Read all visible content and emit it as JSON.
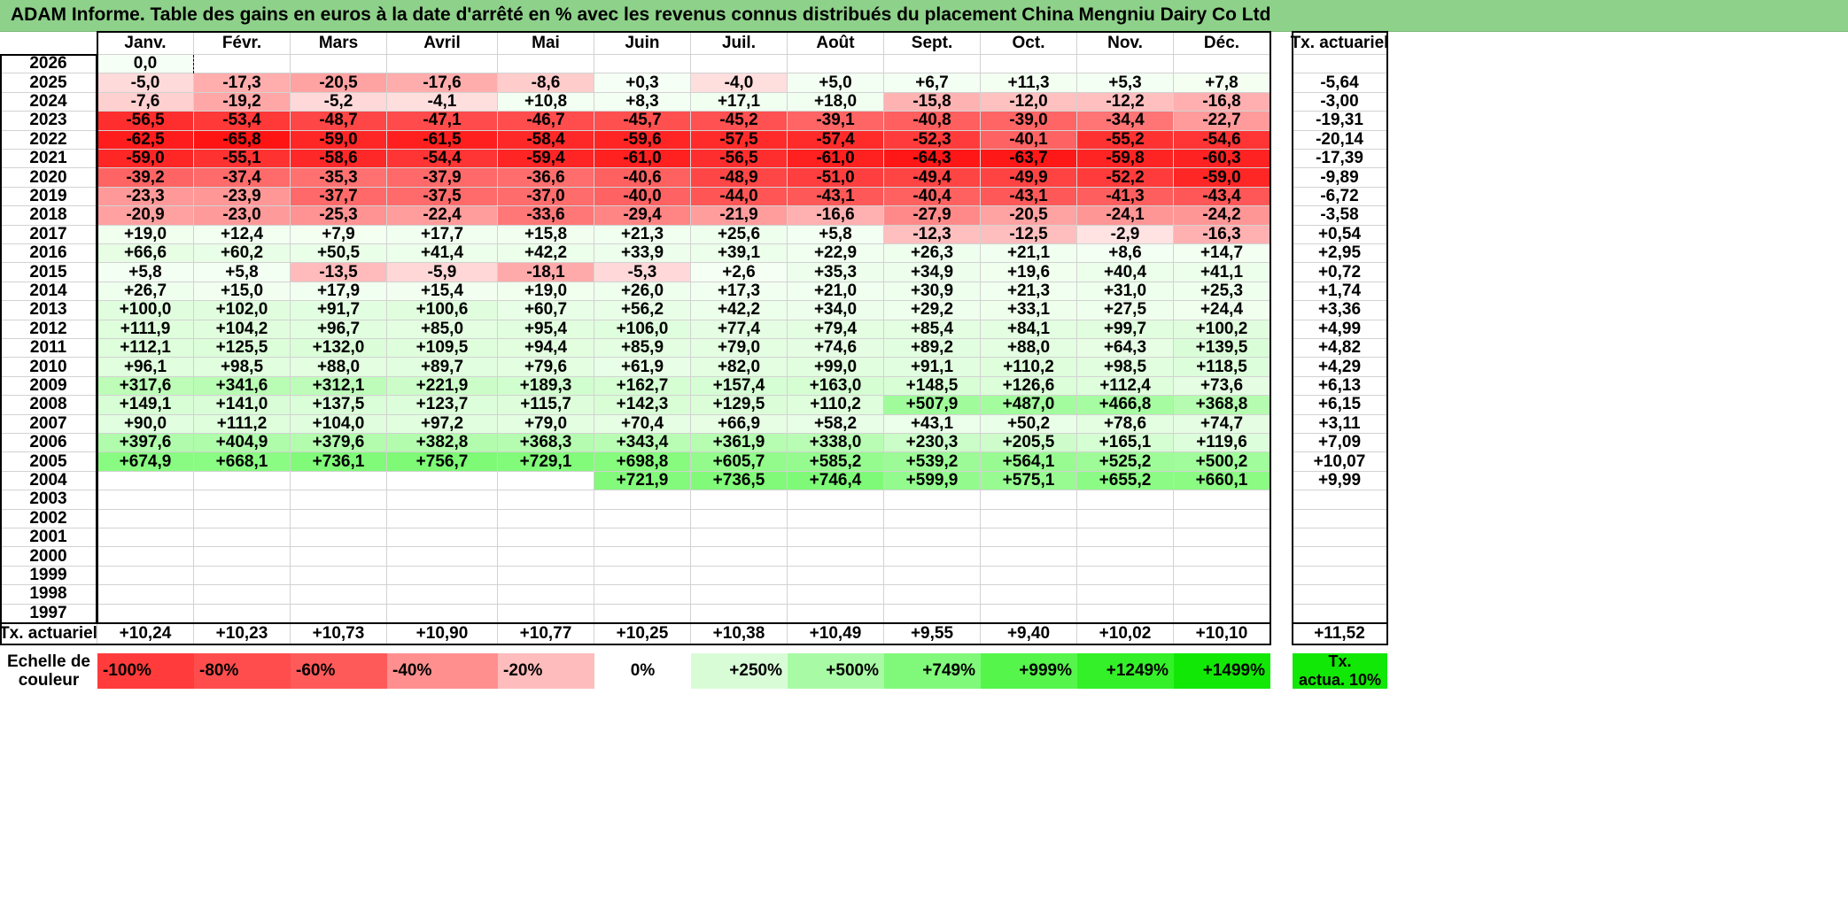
{
  "title": "ADAM Informe. Table des gains en euros à la date d'arrêté en % avec les revenus connus distribués du placement China Mengniu Dairy Co Ltd",
  "months": [
    "Janv.",
    "Févr.",
    "Mars",
    "Avril",
    "Mai",
    "Juin",
    "Juil.",
    "Août",
    "Sept.",
    "Oct.",
    "Nov.",
    "Déc."
  ],
  "annual_header": "Tx. actuariel",
  "years": [
    "2026",
    "2025",
    "2024",
    "2023",
    "2022",
    "2021",
    "2020",
    "2019",
    "2018",
    "2017",
    "2016",
    "2015",
    "2014",
    "2013",
    "2012",
    "2011",
    "2010",
    "2009",
    "2008",
    "2007",
    "2006",
    "2005",
    "2004",
    "2003",
    "2002",
    "2001",
    "2000",
    "1999",
    "1998",
    "1997"
  ],
  "values": [
    [
      "0,0",
      "",
      "",
      "",
      "",
      "",
      "",
      "",
      "",
      "",
      "",
      ""
    ],
    [
      "-5,0",
      "-17,3",
      "-20,5",
      "-17,6",
      "-8,6",
      "+0,3",
      "-4,0",
      "+5,0",
      "+6,7",
      "+11,3",
      "+5,3",
      "+7,8"
    ],
    [
      "-7,6",
      "-19,2",
      "-5,2",
      "-4,1",
      "+10,8",
      "+8,3",
      "+17,1",
      "+18,0",
      "-15,8",
      "-12,0",
      "-12,2",
      "-16,8"
    ],
    [
      "-56,5",
      "-53,4",
      "-48,7",
      "-47,1",
      "-46,7",
      "-45,7",
      "-45,2",
      "-39,1",
      "-40,8",
      "-39,0",
      "-34,4",
      "-22,7"
    ],
    [
      "-62,5",
      "-65,8",
      "-59,0",
      "-61,5",
      "-58,4",
      "-59,6",
      "-57,5",
      "-57,4",
      "-52,3",
      "-40,1",
      "-55,2",
      "-54,6"
    ],
    [
      "-59,0",
      "-55,1",
      "-58,6",
      "-54,4",
      "-59,4",
      "-61,0",
      "-56,5",
      "-61,0",
      "-64,3",
      "-63,7",
      "-59,8",
      "-60,3"
    ],
    [
      "-39,2",
      "-37,4",
      "-35,3",
      "-37,9",
      "-36,6",
      "-40,6",
      "-48,9",
      "-51,0",
      "-49,4",
      "-49,9",
      "-52,2",
      "-59,0"
    ],
    [
      "-23,3",
      "-23,9",
      "-37,7",
      "-37,5",
      "-37,0",
      "-40,0",
      "-44,0",
      "-43,1",
      "-40,4",
      "-43,1",
      "-41,3",
      "-43,4"
    ],
    [
      "-20,9",
      "-23,0",
      "-25,3",
      "-22,4",
      "-33,6",
      "-29,4",
      "-21,9",
      "-16,6",
      "-27,9",
      "-20,5",
      "-24,1",
      "-24,2"
    ],
    [
      "+19,0",
      "+12,4",
      "+7,9",
      "+17,7",
      "+15,8",
      "+21,3",
      "+25,6",
      "+5,8",
      "-12,3",
      "-12,5",
      "-2,9",
      "-16,3"
    ],
    [
      "+66,6",
      "+60,2",
      "+50,5",
      "+41,4",
      "+42,2",
      "+33,9",
      "+39,1",
      "+22,9",
      "+26,3",
      "+21,1",
      "+8,6",
      "+14,7"
    ],
    [
      "+5,8",
      "+5,8",
      "-13,5",
      "-5,9",
      "-18,1",
      "-5,3",
      "+2,6",
      "+35,3",
      "+34,9",
      "+19,6",
      "+40,4",
      "+41,1"
    ],
    [
      "+26,7",
      "+15,0",
      "+17,9",
      "+15,4",
      "+19,0",
      "+26,0",
      "+17,3",
      "+21,0",
      "+30,9",
      "+21,3",
      "+31,0",
      "+25,3"
    ],
    [
      "+100,0",
      "+102,0",
      "+91,7",
      "+100,6",
      "+60,7",
      "+56,2",
      "+42,2",
      "+34,0",
      "+29,2",
      "+33,1",
      "+27,5",
      "+24,4"
    ],
    [
      "+111,9",
      "+104,2",
      "+96,7",
      "+85,0",
      "+95,4",
      "+106,0",
      "+77,4",
      "+79,4",
      "+85,4",
      "+84,1",
      "+99,7",
      "+100,2"
    ],
    [
      "+112,1",
      "+125,5",
      "+132,0",
      "+109,5",
      "+94,4",
      "+85,9",
      "+79,0",
      "+74,6",
      "+89,2",
      "+88,0",
      "+64,3",
      "+139,5"
    ],
    [
      "+96,1",
      "+98,5",
      "+88,0",
      "+89,7",
      "+79,6",
      "+61,9",
      "+82,0",
      "+99,0",
      "+91,1",
      "+110,2",
      "+98,5",
      "+118,5"
    ],
    [
      "+317,6",
      "+341,6",
      "+312,1",
      "+221,9",
      "+189,3",
      "+162,7",
      "+157,4",
      "+163,0",
      "+148,5",
      "+126,6",
      "+112,4",
      "+73,6"
    ],
    [
      "+149,1",
      "+141,0",
      "+137,5",
      "+123,7",
      "+115,7",
      "+142,3",
      "+129,5",
      "+110,2",
      "+507,9",
      "+487,0",
      "+466,8",
      "+368,8"
    ],
    [
      "+90,0",
      "+111,2",
      "+104,0",
      "+97,2",
      "+79,0",
      "+70,4",
      "+66,9",
      "+58,2",
      "+43,1",
      "+50,2",
      "+78,6",
      "+74,7"
    ],
    [
      "+397,6",
      "+404,9",
      "+379,6",
      "+382,8",
      "+368,3",
      "+343,4",
      "+361,9",
      "+338,0",
      "+230,3",
      "+205,5",
      "+165,1",
      "+119,6"
    ],
    [
      "+674,9",
      "+668,1",
      "+736,1",
      "+756,7",
      "+729,1",
      "+698,8",
      "+605,7",
      "+585,2",
      "+539,2",
      "+564,1",
      "+525,2",
      "+500,2"
    ],
    [
      "",
      "",
      "",
      "",
      "",
      "+721,9",
      "+736,5",
      "+746,4",
      "+599,9",
      "+575,1",
      "+655,2",
      "+660,1"
    ],
    [
      "",
      "",
      "",
      "",
      "",
      "",
      "",
      "",
      "",
      "",
      "",
      ""
    ],
    [
      "",
      "",
      "",
      "",
      "",
      "",
      "",
      "",
      "",
      "",
      "",
      ""
    ],
    [
      "",
      "",
      "",
      "",
      "",
      "",
      "",
      "",
      "",
      "",
      "",
      ""
    ],
    [
      "",
      "",
      "",
      "",
      "",
      "",
      "",
      "",
      "",
      "",
      "",
      ""
    ],
    [
      "",
      "",
      "",
      "",
      "",
      "",
      "",
      "",
      "",
      "",
      "",
      ""
    ],
    [
      "",
      "",
      "",
      "",
      "",
      "",
      "",
      "",
      "",
      "",
      "",
      ""
    ],
    [
      "",
      "",
      "",
      "",
      "",
      "",
      "",
      "",
      "",
      "",
      "",
      ""
    ]
  ],
  "annual": [
    "",
    "-5,64",
    "-3,00",
    "-19,31",
    "-20,14",
    "-17,39",
    "-9,89",
    "-6,72",
    "-3,58",
    "+0,54",
    "+2,95",
    "+0,72",
    "+1,74",
    "+3,36",
    "+4,99",
    "+4,82",
    "+4,29",
    "+6,13",
    "+6,15",
    "+3,11",
    "+7,09",
    "+10,07",
    "+9,99",
    "",
    "",
    "",
    "",
    "",
    "",
    ""
  ],
  "footer_label": "Tx. actuariel",
  "footer_values": [
    "+10,24",
    "+10,23",
    "+10,73",
    "+10,90",
    "+10,77",
    "+10,25",
    "+10,38",
    "+10,49",
    "+9,55",
    "+9,40",
    "+10,02",
    "+10,10"
  ],
  "footer_annual": "+11,52",
  "legend": {
    "label_line1": "Echelle de",
    "label_line2": "couleur",
    "items": [
      {
        "text": "-100%",
        "color": "#ff3b3b",
        "align": "l"
      },
      {
        "text": "-80%",
        "color": "#ff4d4d",
        "align": "l"
      },
      {
        "text": "-60%",
        "color": "#ff5a5a",
        "align": "l"
      },
      {
        "text": "-40%",
        "color": "#ff8f8f",
        "align": "l"
      },
      {
        "text": "-20%",
        "color": "#ffbcbc",
        "align": "l"
      },
      {
        "text": "0%",
        "color": "#ffffff",
        "align": "c"
      },
      {
        "text": "+250%",
        "color": "#d8fdd6",
        "align": "r"
      },
      {
        "text": "+500%",
        "color": "#a8fba4",
        "align": "r"
      },
      {
        "text": "+749%",
        "color": "#80f97a",
        "align": "r"
      },
      {
        "text": "+999%",
        "color": "#55f54c",
        "align": "r"
      },
      {
        "text": "+1249%",
        "color": "#33f028",
        "align": "r"
      },
      {
        "text": "+1499%",
        "color": "#12e806",
        "align": "r"
      }
    ],
    "tx_line1": "Tx.",
    "tx_line2": "actua. 10%",
    "tx_color": "#12e806"
  }
}
